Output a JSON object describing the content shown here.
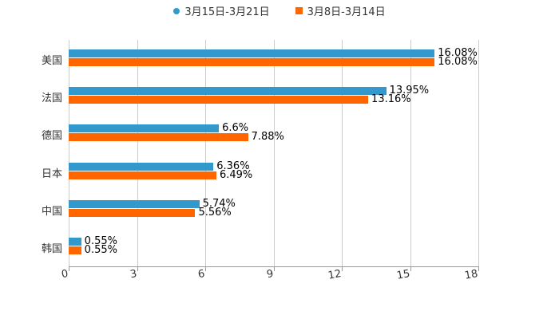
{
  "chart_data": {
    "type": "bar",
    "orientation": "horizontal",
    "title": "",
    "xlabel": "",
    "ylabel": "",
    "xlim": [
      0,
      18
    ],
    "xticks": [
      "0",
      "3",
      "6",
      "9",
      "12",
      "15",
      "18"
    ],
    "grid": true,
    "legend_position": "top",
    "categories": [
      "美国",
      "法国",
      "德国",
      "日本",
      "中国",
      "韩国"
    ],
    "series": [
      {
        "name": "3月15日-3月21日",
        "color": "#3399cc",
        "values": [
          16.08,
          13.95,
          6.6,
          6.36,
          5.74,
          0.55
        ],
        "labels": [
          "16.08%",
          "13.95%",
          "6.6%",
          "6.36%",
          "5.74%",
          "0.55%"
        ]
      },
      {
        "name": "3月8日-3月14日",
        "color": "#ff6600",
        "values": [
          16.08,
          13.16,
          7.88,
          6.49,
          5.56,
          0.55
        ],
        "labels": [
          "16.08%",
          "13.16%",
          "7.88%",
          "6.49%",
          "5.56%",
          "0.55%"
        ]
      }
    ]
  },
  "legend": [
    {
      "label": "3月15日-3月21日",
      "color": "#3399cc",
      "marker": "dot"
    },
    {
      "label": "3月8日-3月14日",
      "color": "#ff6600",
      "marker": "square"
    }
  ]
}
